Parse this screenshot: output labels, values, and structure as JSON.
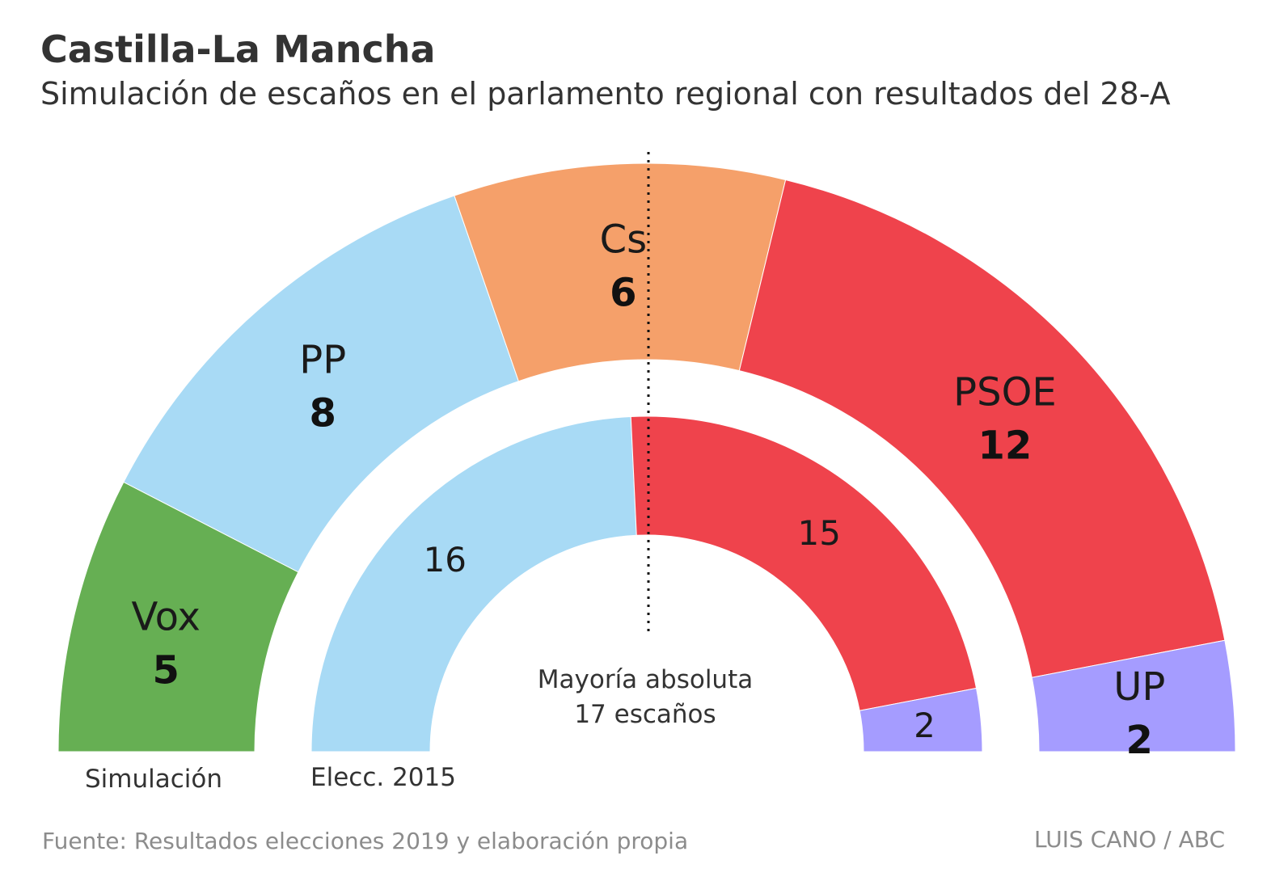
{
  "title": "Castilla-La Mancha",
  "subtitle": "Simulación de escaños en el parlamento regional con resultados del 28-A",
  "footer": {
    "source": "Fuente: Resultados elecciones 2019 y elaboración propia",
    "credit": "LUIS CANO / ABC"
  },
  "chart_data": {
    "type": "parliament",
    "majority": {
      "label_line1": "Mayoría absoluta",
      "label_line2": "17 escaños",
      "seats": 17
    },
    "rings": [
      {
        "label": "Simulación",
        "ring": "outer",
        "parties": [
          {
            "name": "Vox",
            "seats": 5,
            "color": "#66AF53"
          },
          {
            "name": "PP",
            "seats": 8,
            "color": "#A8DAF5"
          },
          {
            "name": "Cs",
            "seats": 6,
            "color": "#F5A06A"
          },
          {
            "name": "PSOE",
            "seats": 12,
            "color": "#EF434C"
          },
          {
            "name": "UP",
            "seats": 2,
            "color": "#A59CFF"
          }
        ]
      },
      {
        "label": "Elecc. 2015",
        "ring": "inner",
        "parties": [
          {
            "name": "PP",
            "seats": 16,
            "color": "#A8DAF5"
          },
          {
            "name": "PSOE",
            "seats": 15,
            "color": "#EF434C"
          },
          {
            "name": "UP",
            "seats": 2,
            "color": "#A59CFF"
          }
        ]
      }
    ]
  }
}
